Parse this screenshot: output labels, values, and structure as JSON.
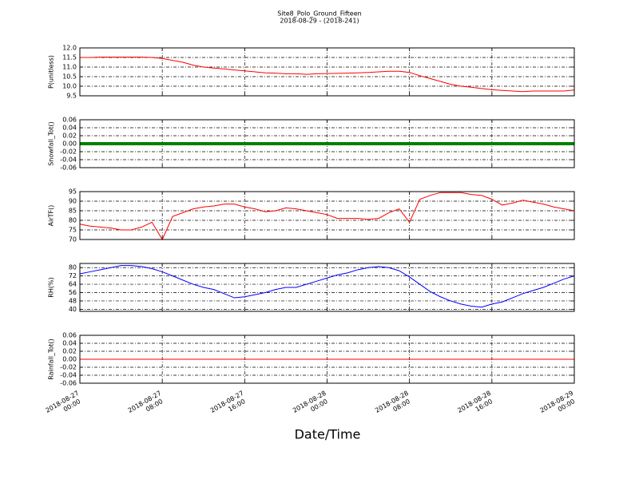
{
  "chart_data": [
    {
      "type": "line",
      "title": "Site8_Polo_Ground_Fifteen",
      "subtitle": "2018-08-29 - (2018-241)",
      "ylabel": "P(unitless)",
      "x": [
        "2018-08-27 00:00",
        "2018-08-27 01:00",
        "2018-08-27 02:00",
        "2018-08-27 03:00",
        "2018-08-27 04:00",
        "2018-08-27 05:00",
        "2018-08-27 06:00",
        "2018-08-27 07:00",
        "2018-08-27 08:00",
        "2018-08-27 09:00",
        "2018-08-27 10:00",
        "2018-08-27 11:00",
        "2018-08-27 12:00",
        "2018-08-27 13:00",
        "2018-08-27 14:00",
        "2018-08-27 15:00",
        "2018-08-27 16:00",
        "2018-08-27 17:00",
        "2018-08-27 18:00",
        "2018-08-27 19:00",
        "2018-08-27 20:00",
        "2018-08-27 21:00",
        "2018-08-27 22:00",
        "2018-08-27 23:00",
        "2018-08-28 00:00",
        "2018-08-28 01:00",
        "2018-08-28 02:00",
        "2018-08-28 03:00",
        "2018-08-28 04:00",
        "2018-08-28 05:00",
        "2018-08-28 06:00",
        "2018-08-28 07:00",
        "2018-08-28 08:00",
        "2018-08-28 09:00",
        "2018-08-28 10:00",
        "2018-08-28 11:00",
        "2018-08-28 12:00",
        "2018-08-28 13:00",
        "2018-08-28 14:00",
        "2018-08-28 15:00",
        "2018-08-28 16:00",
        "2018-08-28 17:00",
        "2018-08-28 18:00",
        "2018-08-28 19:00",
        "2018-08-28 20:00",
        "2018-08-28 21:00",
        "2018-08-28 22:00",
        "2018-08-28 23:00",
        "2018-08-29 00:00"
      ],
      "series": [
        {
          "color": "#ff0000",
          "values": [
            11.5,
            11.5,
            11.52,
            11.52,
            11.52,
            11.52,
            11.52,
            11.5,
            11.45,
            11.35,
            11.25,
            11.1,
            11.0,
            10.95,
            10.9,
            10.85,
            10.8,
            10.75,
            10.7,
            10.68,
            10.65,
            10.65,
            10.62,
            10.65,
            10.66,
            10.67,
            10.68,
            10.7,
            10.72,
            10.75,
            10.78,
            10.78,
            10.72,
            10.55,
            10.4,
            10.25,
            10.1,
            10.0,
            9.95,
            9.88,
            9.82,
            9.78,
            9.75,
            9.72,
            9.75,
            9.75,
            9.75,
            9.75,
            9.8
          ]
        }
      ],
      "xlim": [
        "2018-08-27 00:00",
        "2018-08-29 00:00"
      ],
      "xticks": [
        "2018-08-27 00:00",
        "2018-08-27 08:00",
        "2018-08-27 16:00",
        "2018-08-28 00:00",
        "2018-08-28 08:00",
        "2018-08-28 16:00",
        "2018-08-29 00:00"
      ],
      "ylim": [
        9.5,
        12.0
      ],
      "yticks": [
        9.5,
        {
          "value": 10.0,
          "label": "10.0"
        },
        10.5,
        {
          "value": 11.0,
          "label": "11.0"
        },
        11.5,
        {
          "value": 12.0,
          "label": "12.0"
        }
      ],
      "grid": true
    },
    {
      "type": "line",
      "ylabel": "Snowfall_Tot()",
      "x": [
        "2018-08-27 00:00",
        "2018-08-27 01:00",
        "2018-08-27 02:00",
        "2018-08-27 03:00",
        "2018-08-27 04:00",
        "2018-08-27 05:00",
        "2018-08-27 06:00",
        "2018-08-27 07:00",
        "2018-08-27 08:00",
        "2018-08-27 09:00",
        "2018-08-27 10:00",
        "2018-08-27 11:00",
        "2018-08-27 12:00",
        "2018-08-27 13:00",
        "2018-08-27 14:00",
        "2018-08-27 15:00",
        "2018-08-27 16:00",
        "2018-08-27 17:00",
        "2018-08-27 18:00",
        "2018-08-27 19:00",
        "2018-08-27 20:00",
        "2018-08-27 21:00",
        "2018-08-27 22:00",
        "2018-08-27 23:00",
        "2018-08-28 00:00",
        "2018-08-28 01:00",
        "2018-08-28 02:00",
        "2018-08-28 03:00",
        "2018-08-28 04:00",
        "2018-08-28 05:00",
        "2018-08-28 06:00",
        "2018-08-28 07:00",
        "2018-08-28 08:00",
        "2018-08-28 09:00",
        "2018-08-28 10:00",
        "2018-08-28 11:00",
        "2018-08-28 12:00",
        "2018-08-28 13:00",
        "2018-08-28 14:00",
        "2018-08-28 15:00",
        "2018-08-28 16:00",
        "2018-08-28 17:00",
        "2018-08-28 18:00",
        "2018-08-28 19:00",
        "2018-08-28 20:00",
        "2018-08-28 21:00",
        "2018-08-28 22:00",
        "2018-08-28 23:00",
        "2018-08-29 00:00"
      ],
      "series": [
        {
          "color": "#008000",
          "values": [
            0,
            0,
            0,
            0,
            0,
            0,
            0,
            0,
            0,
            0,
            0,
            0,
            0,
            0,
            0,
            0,
            0,
            0,
            0,
            0,
            0,
            0,
            0,
            0,
            0,
            0,
            0,
            0,
            0,
            0,
            0,
            0,
            0,
            0,
            0,
            0,
            0,
            0,
            0,
            0,
            0,
            0,
            0,
            0,
            0,
            0,
            0,
            0,
            0
          ]
        }
      ],
      "xlim": [
        "2018-08-27 00:00",
        "2018-08-29 00:00"
      ],
      "xticks": [
        "2018-08-27 00:00",
        "2018-08-27 08:00",
        "2018-08-27 16:00",
        "2018-08-28 00:00",
        "2018-08-28 08:00",
        "2018-08-28 16:00",
        "2018-08-29 00:00"
      ],
      "ylim": [
        -0.06,
        0.06
      ],
      "yticks": [
        {
          "value": -0.06,
          "label": "-0.06"
        },
        {
          "value": -0.04,
          "label": "-0.04"
        },
        {
          "value": -0.02,
          "label": "-0.02"
        },
        {
          "value": 0,
          "label": "0.00"
        },
        {
          "value": 0.02,
          "label": "0.02"
        },
        {
          "value": 0.04,
          "label": "0.04"
        },
        {
          "value": 0.06,
          "label": "0.06"
        }
      ],
      "grid": true
    },
    {
      "type": "line",
      "ylabel": "AirTF()",
      "x": [
        "2018-08-27 00:00",
        "2018-08-27 01:00",
        "2018-08-27 02:00",
        "2018-08-27 03:00",
        "2018-08-27 04:00",
        "2018-08-27 05:00",
        "2018-08-27 06:00",
        "2018-08-27 07:00",
        "2018-08-27 08:00",
        "2018-08-27 09:00",
        "2018-08-27 10:00",
        "2018-08-27 11:00",
        "2018-08-27 12:00",
        "2018-08-27 13:00",
        "2018-08-27 14:00",
        "2018-08-27 15:00",
        "2018-08-27 16:00",
        "2018-08-27 17:00",
        "2018-08-27 18:00",
        "2018-08-27 19:00",
        "2018-08-27 20:00",
        "2018-08-27 21:00",
        "2018-08-27 22:00",
        "2018-08-27 23:00",
        "2018-08-28 00:00",
        "2018-08-28 01:00",
        "2018-08-28 02:00",
        "2018-08-28 03:00",
        "2018-08-28 04:00",
        "2018-08-28 05:00",
        "2018-08-28 06:00",
        "2018-08-28 07:00",
        "2018-08-28 08:00",
        "2018-08-28 09:00",
        "2018-08-28 10:00",
        "2018-08-28 11:00",
        "2018-08-28 12:00",
        "2018-08-28 13:00",
        "2018-08-28 14:00",
        "2018-08-28 15:00",
        "2018-08-28 16:00",
        "2018-08-28 17:00",
        "2018-08-28 18:00",
        "2018-08-28 19:00",
        "2018-08-28 20:00",
        "2018-08-28 21:00",
        "2018-08-28 22:00",
        "2018-08-28 23:00",
        "2018-08-29 00:00"
      ],
      "series": [
        {
          "color": "#ff0000",
          "values": [
            78,
            77,
            76.5,
            76,
            75,
            75,
            76.5,
            79,
            70,
            82,
            84,
            86,
            87,
            87.5,
            88.5,
            88.5,
            87,
            86,
            84.5,
            85,
            86.5,
            86,
            85,
            84,
            83,
            81,
            81,
            81,
            80.5,
            81,
            84,
            86,
            79,
            91,
            93,
            94.5,
            94.5,
            94.5,
            93.5,
            93,
            91,
            88,
            89,
            90.5,
            89.5,
            88.5,
            87,
            86,
            85
          ]
        }
      ],
      "xlim": [
        "2018-08-27 00:00",
        "2018-08-29 00:00"
      ],
      "xticks": [
        "2018-08-27 00:00",
        "2018-08-27 08:00",
        "2018-08-27 16:00",
        "2018-08-28 00:00",
        "2018-08-28 08:00",
        "2018-08-28 16:00",
        "2018-08-29 00:00"
      ],
      "ylim": [
        70,
        95
      ],
      "yticks": [
        70,
        75,
        80,
        85,
        90,
        95
      ],
      "grid": true
    },
    {
      "type": "line",
      "ylabel": "RH(%)",
      "x": [
        "2018-08-27 00:00",
        "2018-08-27 01:00",
        "2018-08-27 02:00",
        "2018-08-27 03:00",
        "2018-08-27 04:00",
        "2018-08-27 05:00",
        "2018-08-27 06:00",
        "2018-08-27 07:00",
        "2018-08-27 08:00",
        "2018-08-27 09:00",
        "2018-08-27 10:00",
        "2018-08-27 11:00",
        "2018-08-27 12:00",
        "2018-08-27 13:00",
        "2018-08-27 14:00",
        "2018-08-27 15:00",
        "2018-08-27 16:00",
        "2018-08-27 17:00",
        "2018-08-27 18:00",
        "2018-08-27 19:00",
        "2018-08-27 20:00",
        "2018-08-27 21:00",
        "2018-08-27 22:00",
        "2018-08-27 23:00",
        "2018-08-28 00:00",
        "2018-08-28 01:00",
        "2018-08-28 02:00",
        "2018-08-28 03:00",
        "2018-08-28 04:00",
        "2018-08-28 05:00",
        "2018-08-28 06:00",
        "2018-08-28 07:00",
        "2018-08-28 08:00",
        "2018-08-28 09:00",
        "2018-08-28 10:00",
        "2018-08-28 11:00",
        "2018-08-28 12:00",
        "2018-08-28 13:00",
        "2018-08-28 14:00",
        "2018-08-28 15:00",
        "2018-08-28 16:00",
        "2018-08-28 17:00",
        "2018-08-28 18:00",
        "2018-08-28 19:00",
        "2018-08-28 20:00",
        "2018-08-28 21:00",
        "2018-08-28 22:00",
        "2018-08-28 23:00",
        "2018-08-29 00:00"
      ],
      "series": [
        {
          "color": "#0000ff",
          "values": [
            74,
            76,
            78,
            80,
            82,
            82,
            81,
            79,
            76,
            72,
            68,
            64,
            61,
            59,
            55,
            51,
            52,
            54,
            56,
            59,
            61,
            61,
            64,
            67,
            70,
            73,
            75,
            78,
            80,
            81,
            80,
            77,
            71,
            64,
            57,
            52,
            48,
            45,
            43,
            42,
            45,
            47,
            51,
            55,
            58,
            61,
            65,
            69,
            72
          ]
        }
      ],
      "xlim": [
        "2018-08-27 00:00",
        "2018-08-29 00:00"
      ],
      "xticks": [
        "2018-08-27 00:00",
        "2018-08-27 08:00",
        "2018-08-27 16:00",
        "2018-08-28 00:00",
        "2018-08-28 08:00",
        "2018-08-28 16:00",
        "2018-08-29 00:00"
      ],
      "ylim": [
        38,
        84
      ],
      "yticks": [
        40,
        48,
        56,
        64,
        72,
        80
      ],
      "grid": true
    },
    {
      "type": "line",
      "ylabel": "Rainfall_Tot()",
      "xlabel": "Date/Time",
      "x": [
        "2018-08-27 00:00",
        "2018-08-27 01:00",
        "2018-08-27 02:00",
        "2018-08-27 03:00",
        "2018-08-27 04:00",
        "2018-08-27 05:00",
        "2018-08-27 06:00",
        "2018-08-27 07:00",
        "2018-08-27 08:00",
        "2018-08-27 09:00",
        "2018-08-27 10:00",
        "2018-08-27 11:00",
        "2018-08-27 12:00",
        "2018-08-27 13:00",
        "2018-08-27 14:00",
        "2018-08-27 15:00",
        "2018-08-27 16:00",
        "2018-08-27 17:00",
        "2018-08-27 18:00",
        "2018-08-27 19:00",
        "2018-08-27 20:00",
        "2018-08-27 21:00",
        "2018-08-27 22:00",
        "2018-08-27 23:00",
        "2018-08-28 00:00",
        "2018-08-28 01:00",
        "2018-08-28 02:00",
        "2018-08-28 03:00",
        "2018-08-28 04:00",
        "2018-08-28 05:00",
        "2018-08-28 06:00",
        "2018-08-28 07:00",
        "2018-08-28 08:00",
        "2018-08-28 09:00",
        "2018-08-28 10:00",
        "2018-08-28 11:00",
        "2018-08-28 12:00",
        "2018-08-28 13:00",
        "2018-08-28 14:00",
        "2018-08-28 15:00",
        "2018-08-28 16:00",
        "2018-08-28 17:00",
        "2018-08-28 18:00",
        "2018-08-28 19:00",
        "2018-08-28 20:00",
        "2018-08-28 21:00",
        "2018-08-28 22:00",
        "2018-08-28 23:00",
        "2018-08-29 00:00"
      ],
      "series": [
        {
          "color": "#ff0000",
          "values": [
            0,
            0,
            0,
            0,
            0,
            0,
            0,
            0,
            0,
            0,
            0,
            0,
            0,
            0,
            0,
            0,
            0,
            0,
            0,
            0,
            0,
            0,
            0,
            0,
            0,
            0,
            0,
            0,
            0,
            0,
            0,
            0,
            0,
            0,
            0,
            0,
            0,
            0,
            0,
            0,
            0,
            0,
            0,
            0,
            0,
            0,
            0,
            0,
            0
          ]
        }
      ],
      "xlim": [
        "2018-08-27 00:00",
        "2018-08-29 00:00"
      ],
      "xticks": [
        "2018-08-27 00:00",
        "2018-08-27 08:00",
        "2018-08-27 16:00",
        "2018-08-28 00:00",
        "2018-08-28 08:00",
        "2018-08-28 16:00",
        "2018-08-29 00:00"
      ],
      "ylim": [
        -0.06,
        0.06
      ],
      "yticks": [
        {
          "value": -0.06,
          "label": "-0.06"
        },
        {
          "value": -0.04,
          "label": "-0.04"
        },
        {
          "value": -0.02,
          "label": "-0.02"
        },
        {
          "value": 0,
          "label": "0.00"
        },
        {
          "value": 0.02,
          "label": "0.02"
        },
        {
          "value": 0.04,
          "label": "0.04"
        },
        {
          "value": 0.06,
          "label": "0.06"
        }
      ],
      "grid": true
    }
  ]
}
